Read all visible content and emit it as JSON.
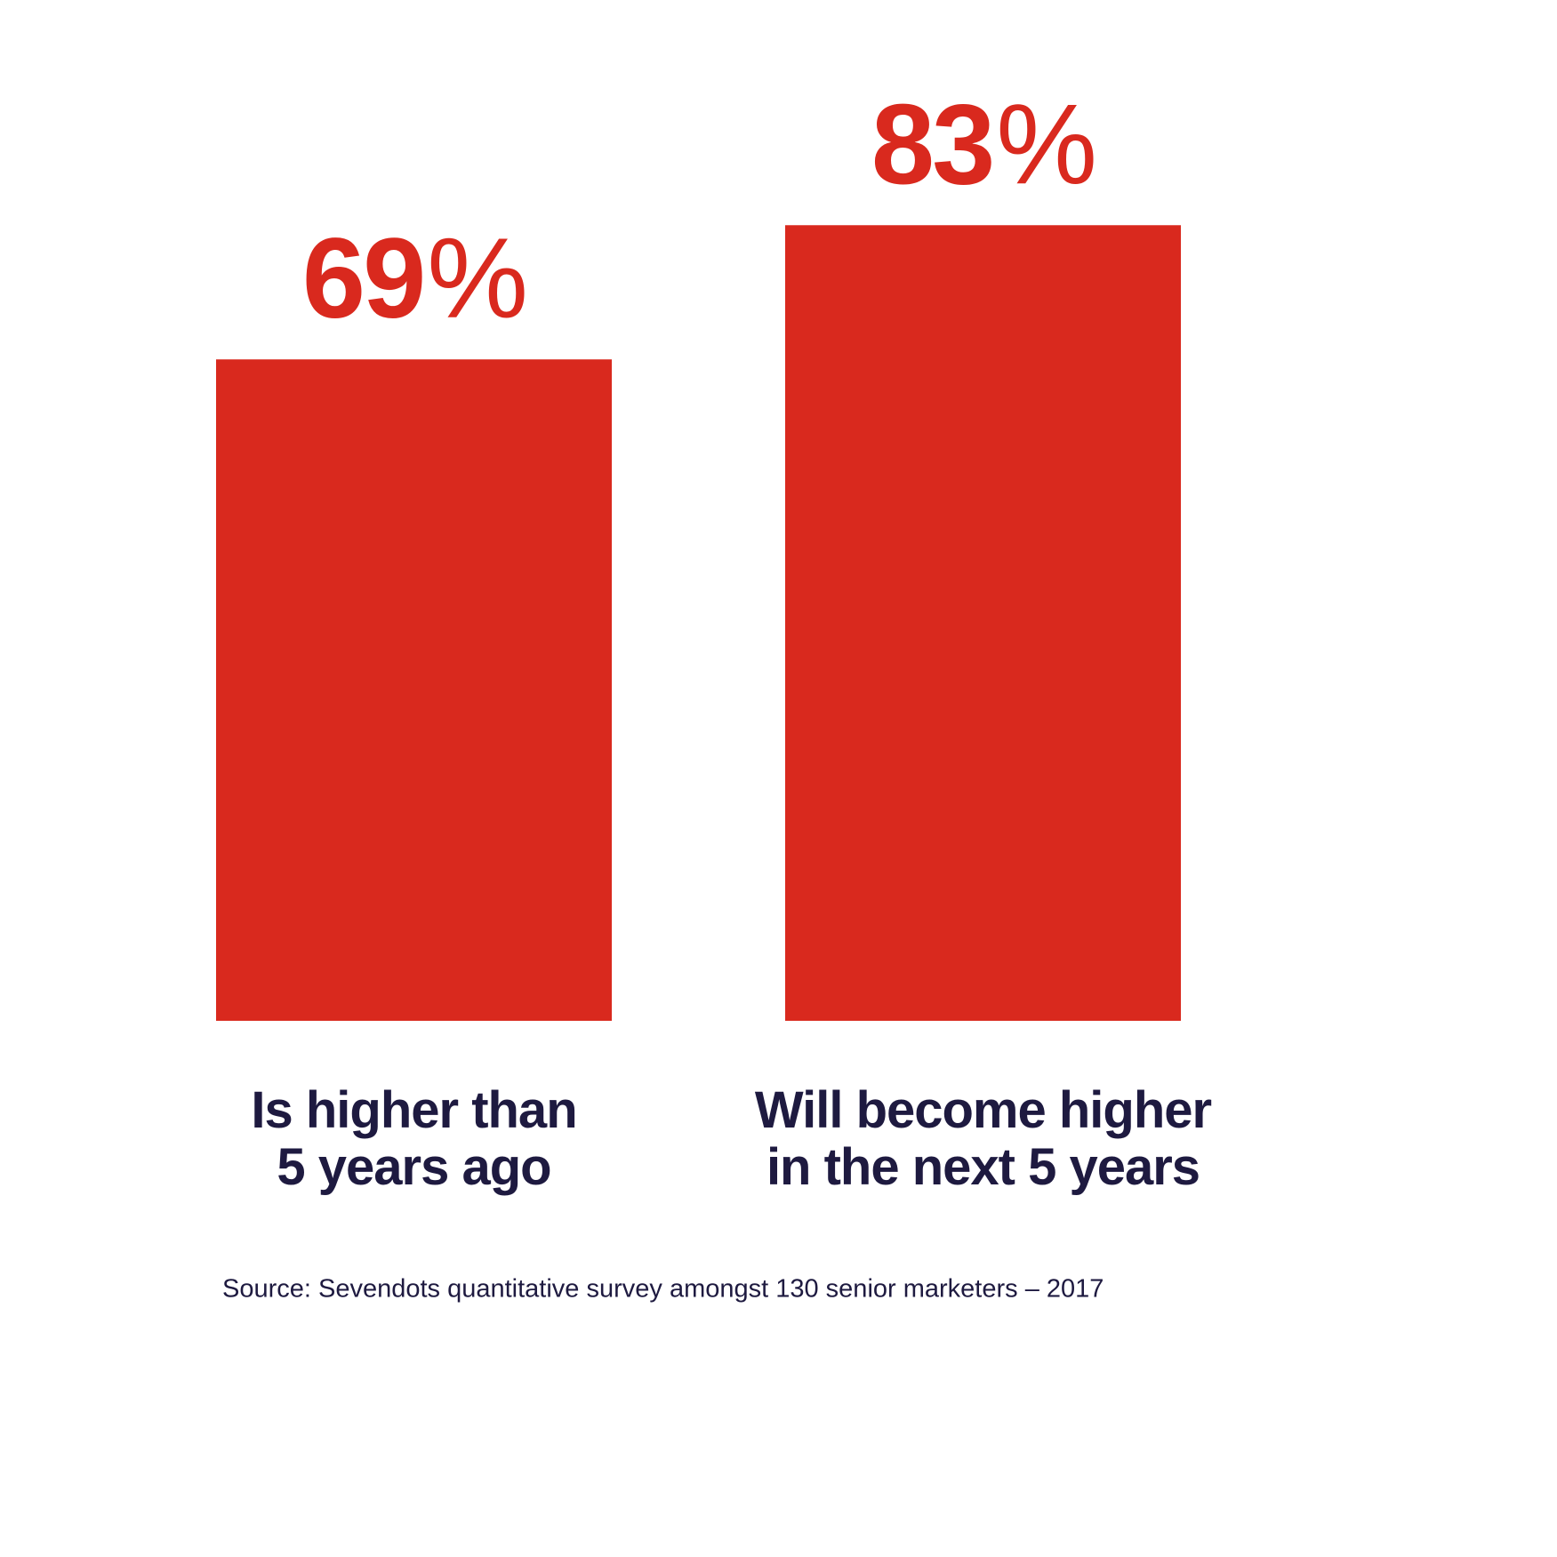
{
  "chart_data": {
    "type": "bar",
    "categories": [
      "Is higher than\n5 years ago",
      "Will become higher\nin the next 5 years"
    ],
    "values": [
      69,
      83
    ],
    "value_labels": [
      "69%",
      "83%"
    ],
    "color": "#d9291e",
    "source": "Source: Sevendots quantitative survey amongst 130 senior marketers – 2017"
  }
}
